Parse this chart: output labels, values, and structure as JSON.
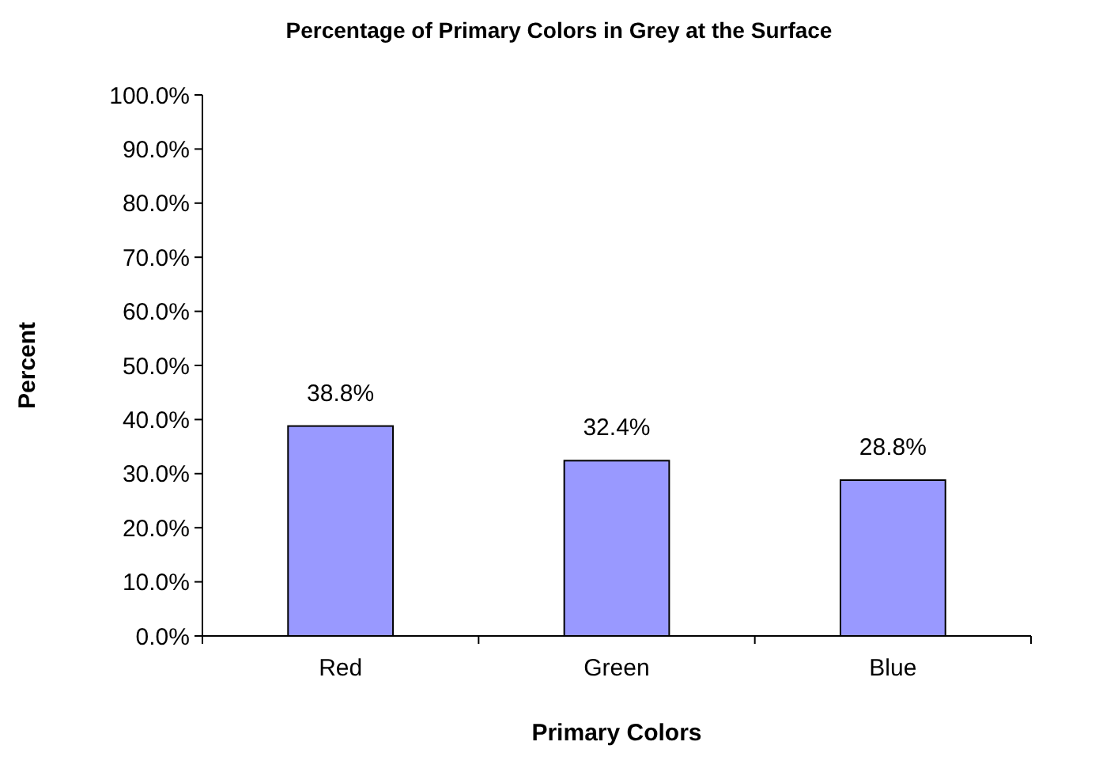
{
  "chart_data": {
    "type": "bar",
    "title": "Percentage of Primary Colors in Grey at the Surface",
    "xlabel": "Primary Colors",
    "ylabel": "Percent",
    "categories": [
      "Red",
      "Green",
      "Blue"
    ],
    "values": [
      38.8,
      32.4,
      28.8
    ],
    "color": "#9999ff",
    "value_labels": [
      "38.8%",
      "32.4%",
      "28.8%"
    ],
    "ylim": [
      0,
      100
    ],
    "yticks": [
      {
        "value": 0,
        "label": "0.0%"
      },
      {
        "value": 10,
        "label": "10.0%"
      },
      {
        "value": 20,
        "label": "20.0%"
      },
      {
        "value": 30,
        "label": "30.0%"
      },
      {
        "value": 40,
        "label": "40.0%"
      },
      {
        "value": 50,
        "label": "50.0%"
      },
      {
        "value": 60,
        "label": "60.0%"
      },
      {
        "value": 70,
        "label": "70.0%"
      },
      {
        "value": 80,
        "label": "80.0%"
      },
      {
        "value": 90,
        "label": "90.0%"
      },
      {
        "value": 100,
        "label": "100.0%"
      }
    ],
    "grid": false
  }
}
